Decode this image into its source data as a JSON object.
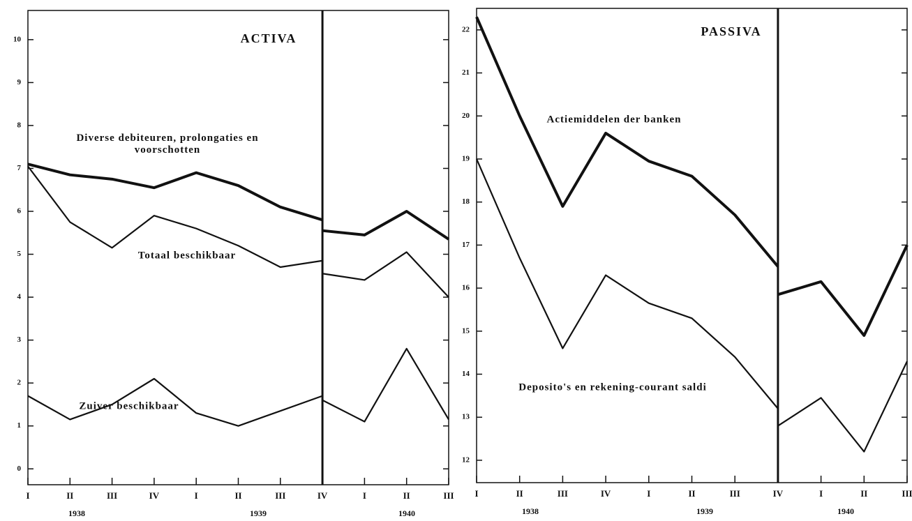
{
  "chart_data": [
    {
      "type": "line",
      "title": "ACTIVA",
      "categories": [
        "I",
        "II",
        "III",
        "IV",
        "I",
        "II",
        "III",
        "IV",
        "I",
        "II",
        "III"
      ],
      "year_labels": [
        "1938",
        "1939",
        "1940"
      ],
      "ylim": [
        -0.37,
        10.68
      ],
      "yticks": [
        0,
        1,
        2,
        3,
        4,
        5,
        6,
        7,
        8,
        9,
        10
      ],
      "series": [
        {
          "name": "Diverse debiteuren, prolongaties en voorschotten",
          "color": "#111111",
          "values": [
            7.1,
            6.85,
            6.75,
            6.55,
            6.9,
            6.6,
            6.1,
            5.8,
            null,
            null,
            null
          ],
          "values_after_break": [
            null,
            null,
            null,
            null,
            null,
            null,
            null,
            5.55,
            5.45,
            6.0,
            5.35
          ]
        },
        {
          "name": "Totaal beschikbaar",
          "color": "#111111",
          "values": [
            7.05,
            5.75,
            5.15,
            5.9,
            5.6,
            5.2,
            4.7,
            4.85,
            null,
            null,
            null
          ],
          "values_after_break": [
            null,
            null,
            null,
            null,
            null,
            null,
            null,
            4.55,
            4.4,
            5.05,
            4.0
          ]
        },
        {
          "name": "Zuiver beschikbaar",
          "color": "#111111",
          "values": [
            1.7,
            1.15,
            1.5,
            2.1,
            1.3,
            1.0,
            1.35,
            1.7,
            null,
            null,
            null
          ],
          "values_after_break": [
            null,
            null,
            null,
            null,
            null,
            null,
            null,
            1.6,
            1.1,
            2.8,
            1.15
          ]
        }
      ]
    },
    {
      "type": "line",
      "title": "PASSIVA",
      "categories": [
        "I",
        "II",
        "III",
        "IV",
        "I",
        "II",
        "III",
        "IV",
        "I",
        "II",
        "III"
      ],
      "year_labels": [
        "1938",
        "1939",
        "1940"
      ],
      "ylim": [
        11.48,
        22.5
      ],
      "yticks": [
        12,
        13,
        14,
        15,
        16,
        17,
        18,
        19,
        20,
        21,
        22
      ],
      "series": [
        {
          "name": "Actiemiddelen der banken",
          "color": "#111111",
          "values": [
            22.3,
            20.0,
            17.9,
            19.6,
            18.95,
            18.6,
            17.7,
            16.5,
            null,
            null,
            null
          ],
          "values_after_break": [
            null,
            null,
            null,
            null,
            null,
            null,
            null,
            15.85,
            16.15,
            14.9,
            17.0
          ]
        },
        {
          "name": "Deposito's en rekening-courant saldi",
          "color": "#111111",
          "values": [
            19.0,
            16.7,
            14.6,
            16.3,
            15.65,
            15.3,
            14.4,
            13.2,
            null,
            null,
            null
          ],
          "values_after_break": [
            null,
            null,
            null,
            null,
            null,
            null,
            null,
            12.8,
            13.45,
            12.2,
            14.3
          ]
        }
      ]
    }
  ]
}
